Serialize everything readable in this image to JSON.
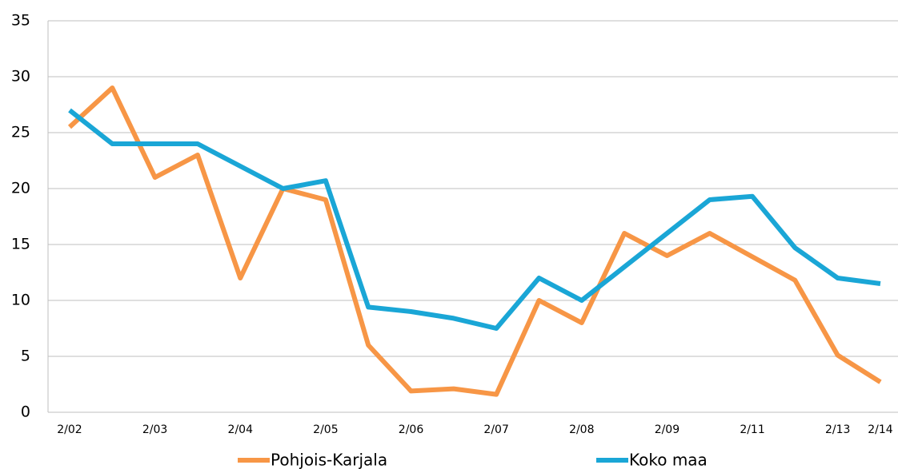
{
  "chart_data": {
    "type": "line",
    "categories": [
      "2/02",
      null,
      "2/03",
      null,
      "2/04",
      null,
      "2/05",
      null,
      "2/06",
      null,
      "2/07",
      null,
      "2/08",
      null,
      "2/09",
      null,
      "2/11",
      null,
      "2/13",
      "2/14"
    ],
    "series": [
      {
        "name": "Pohjois-Karjala",
        "color": "#f79646",
        "values": [
          25.5,
          29,
          21,
          23,
          12,
          20,
          19,
          6,
          1.9,
          2.1,
          1.6,
          10,
          8,
          16,
          14,
          16,
          13.9,
          11.8,
          5.1,
          2.7
        ]
      },
      {
        "name": "Koko maa",
        "color": "#1aa6d6",
        "values": [
          27,
          24,
          24,
          24,
          22,
          20,
          20.7,
          9.4,
          9,
          8.4,
          7.5,
          12,
          10,
          13,
          16,
          19,
          19.3,
          14.7,
          12,
          11.5
        ]
      }
    ],
    "ylim": [
      0,
      35
    ],
    "yticks": [
      0,
      5,
      10,
      15,
      20,
      25,
      30,
      35
    ],
    "grid": true,
    "legend": "bottom"
  }
}
